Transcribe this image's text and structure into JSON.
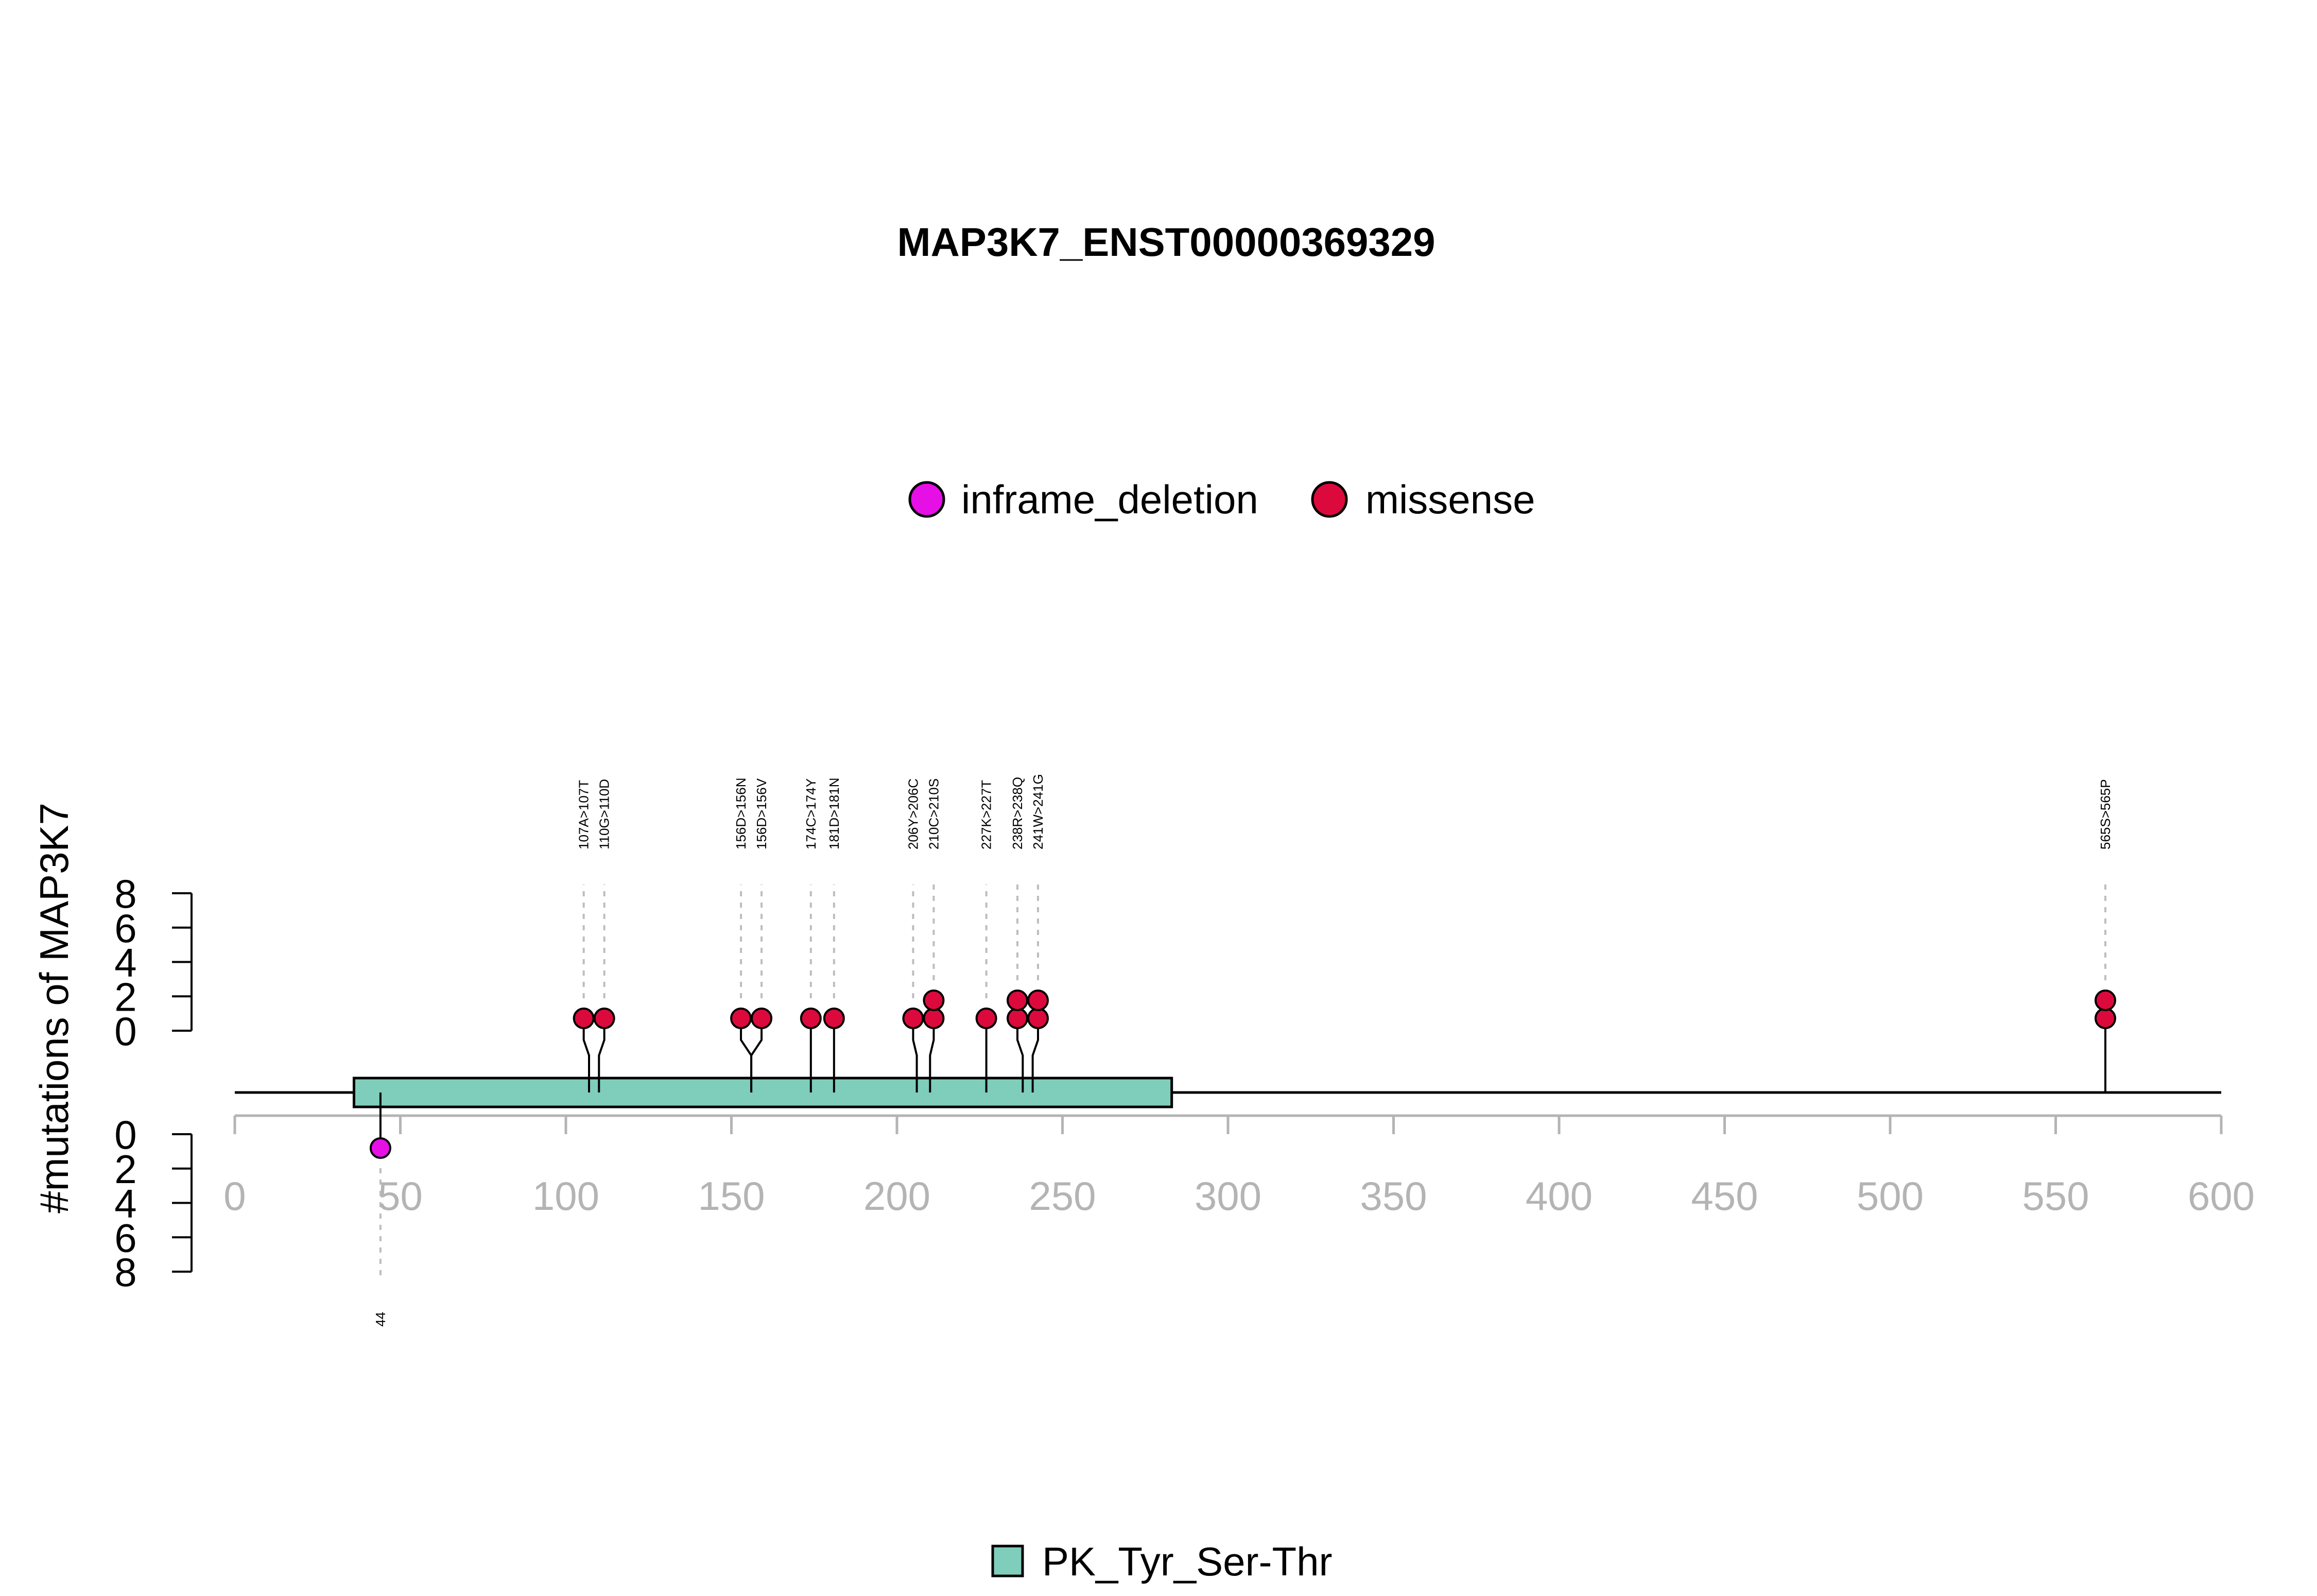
{
  "chart_data": {
    "type": "lollipop",
    "title": "MAP3K7_ENST00000369329",
    "ylabel": "#mutations of MAP3K7",
    "xlim": [
      0,
      600
    ],
    "x_ticks": [
      "0",
      "50",
      "100",
      "150",
      "200",
      "250",
      "300",
      "350",
      "400",
      "450",
      "500",
      "550",
      "600"
    ],
    "y_ticks_upper": [
      "0",
      "2",
      "4",
      "6",
      "8"
    ],
    "y_ticks_lower": [
      "0",
      "2",
      "4",
      "6",
      "8"
    ],
    "ylim": [
      0,
      8
    ],
    "legend_top": [
      {
        "name": "inframe_deletion",
        "color": "#e60fe6"
      },
      {
        "name": "missense",
        "color": "#dc0a3c"
      }
    ],
    "domains": [
      {
        "name": "PK_Tyr_Ser-Thr",
        "start": 36,
        "end": 283,
        "color": "#7fcdbb"
      }
    ],
    "mutations_upper": [
      {
        "position": 107,
        "label": "107A>107T",
        "type": "missense",
        "count": 1
      },
      {
        "position": 110,
        "label": "110G>110D",
        "type": "missense",
        "count": 1
      },
      {
        "position": 156,
        "label": "156D>156N",
        "type": "missense",
        "count": 1
      },
      {
        "position": 156,
        "label": "156D>156V",
        "type": "missense",
        "count": 1
      },
      {
        "position": 174,
        "label": "174C>174Y",
        "type": "missense",
        "count": 1
      },
      {
        "position": 181,
        "label": "181D>181N",
        "type": "missense",
        "count": 1
      },
      {
        "position": 206,
        "label": "206Y>206C",
        "type": "missense",
        "count": 1
      },
      {
        "position": 210,
        "label": "210C>210S",
        "type": "missense",
        "count": 2
      },
      {
        "position": 227,
        "label": "227K>227T",
        "type": "missense",
        "count": 1
      },
      {
        "position": 238,
        "label": "238R>238Q",
        "type": "missense",
        "count": 2
      },
      {
        "position": 241,
        "label": "241W>241G",
        "type": "missense",
        "count": 2
      },
      {
        "position": 565,
        "label": "565S>565P",
        "type": "missense",
        "count": 2
      }
    ],
    "mutations_lower": [
      {
        "position": 44,
        "label": "44",
        "type": "inframe_deletion",
        "count": 1
      }
    ],
    "legend_bottom": [
      {
        "name": "PK_Tyr_Ser-Thr",
        "color": "#7fcdbb"
      }
    ]
  }
}
